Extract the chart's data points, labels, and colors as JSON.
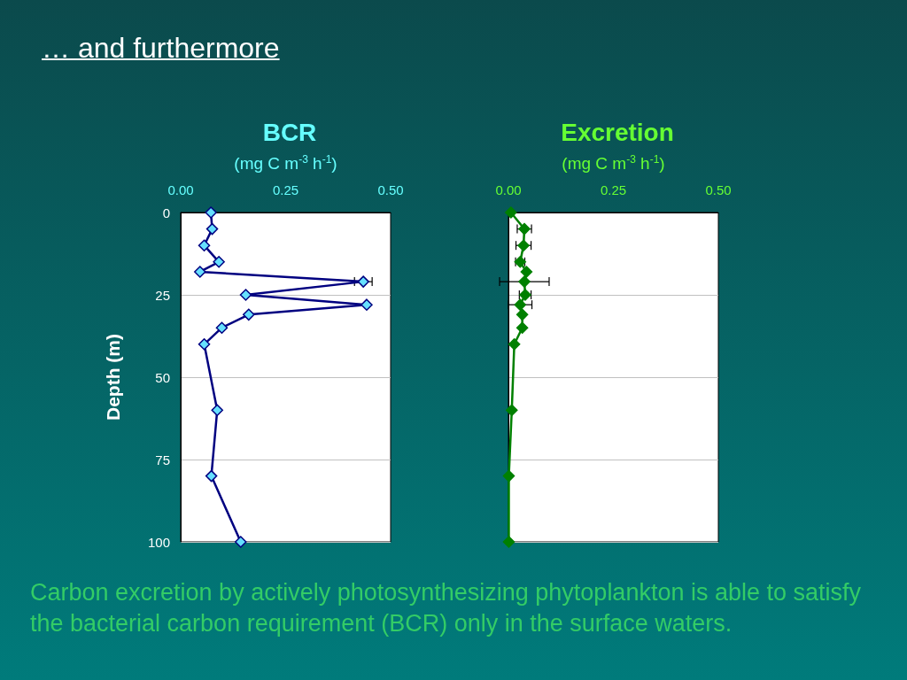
{
  "chart_data": [
    {
      "type": "line",
      "title": "BCR",
      "xlabel": "(mg C m$^{-3}$ h$^{-1}$)",
      "ylabel": "Depth (m)",
      "annotations": [
        "… and furthermore",
        "Carbon excretion by actively photosynthesizing phytoplankton is able to satisfy the bacterial carbon requirement (BCR) only in the surface waters."
      ],
      "xlim": [
        0,
        0.5
      ],
      "xticks": [
        {
          "value": 0,
          "label": "0.00"
        },
        {
          "value": 0.25,
          "label": "0.25"
        },
        {
          "value": 0.5,
          "label": "0.50"
        }
      ],
      "ylim": [
        100,
        0
      ],
      "yticks": [
        0,
        25,
        50,
        75,
        100
      ],
      "grid": "y",
      "marker": "diamond",
      "line_style": "solid",
      "series": [
        {
          "color": "#000080",
          "x": [
            0.072,
            0.075,
            0.056,
            0.091,
            0.046,
            0.435,
            0.155,
            0.443,
            0.162,
            0.098,
            0.056,
            0.087,
            0.073,
            0.143
          ],
          "values": [
            0,
            5,
            10,
            15,
            18,
            21,
            25,
            28,
            31,
            35,
            40,
            60,
            80,
            100
          ],
          "xerrors": [
            null,
            null,
            null,
            null,
            null,
            0.021,
            null,
            null,
            null,
            null,
            null,
            null,
            null,
            null
          ]
        }
      ]
    },
    {
      "type": "line",
      "title": "Excretion",
      "xlabel": "(mg C m$^{-3}$ h$^{-1}$)",
      "xlim": [
        0,
        0.5
      ],
      "xticks": [
        {
          "value": 0,
          "label": "0.00"
        },
        {
          "value": 0.25,
          "label": "0.25"
        },
        {
          "value": 0.5,
          "label": "0.50"
        }
      ],
      "ylim": [
        100,
        0
      ],
      "yticks": [
        0,
        25,
        50,
        75,
        100
      ],
      "tick_labels": "x",
      "grid": "y",
      "marker": "diamond",
      "line_style": "solid",
      "series": [
        {
          "color": "#008000",
          "x": [
            0.006,
            0.038,
            0.036,
            0.028,
            0.043,
            0.038,
            0.04,
            0.028,
            0.033,
            0.033,
            0.014,
            0.008,
            0.001,
            0.001
          ],
          "values": [
            0,
            5,
            10,
            15,
            18,
            21,
            25,
            28,
            31,
            35,
            40,
            60,
            80,
            100
          ],
          "xerrors": [
            null,
            0.017,
            0.018,
            0.011,
            null,
            0.059,
            0.014,
            0.028,
            null,
            null,
            null,
            null,
            null,
            null
          ]
        }
      ]
    }
  ]
}
